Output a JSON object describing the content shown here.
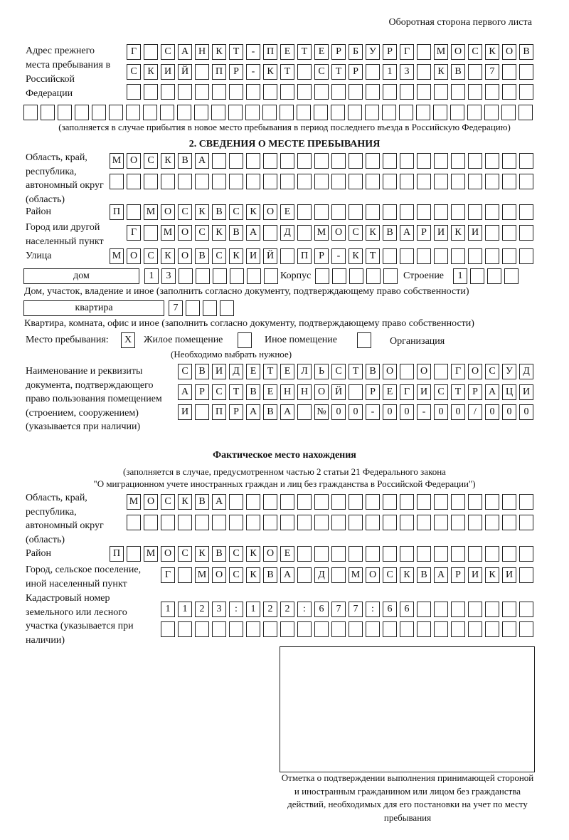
{
  "header": {
    "page_side": "Оборотная сторона первого листа"
  },
  "previous_address": {
    "label": "Адрес прежнего места пребывания в Российской Федерации",
    "rows": [
      "Г САНКТ-ПЕТЕРБУРГ МОСКОВ",
      "СКИЙ ПР-КТ СТР 13 КВ 7",
      "",
      ""
    ],
    "note": "(заполняется в случае прибытия в новое место пребывания в период последнего въезда в Российскую Федерацию)"
  },
  "section2": {
    "title": "2. СВЕДЕНИЯ О МЕСТЕ ПРЕБЫВАНИЯ",
    "region_label": "Область, край, республика, автономный округ (область)",
    "region_rows": [
      "МОСКВА",
      ""
    ],
    "district_label": "Район",
    "district": "П МОСКВСКОЕ",
    "city_label": "Город или другой населенный пункт",
    "city": "Г МОСКВА Д МОСКВАРИКИ",
    "street_label": "Улица",
    "street": "МОСКОВСКИЙ ПР-КТ",
    "house_type": "дом",
    "house_number": "13",
    "korpus_label": "Корпус",
    "korpus": "",
    "building_label": "Строение",
    "building": "1",
    "house_note": "Дом, участок, владение и иное (заполнить согласно документу, подтверждающему право собственности)",
    "apt_type": "квартира",
    "apt_number": "7",
    "apt_note": "Квартира, комната, офис и иное (заполнить согласно документу, подтверждающему право собственности)",
    "stay_label": "Место пребывания:",
    "stay_options": [
      {
        "label": "Жилое помещение",
        "mark": "X"
      },
      {
        "label": "Иное помещение",
        "mark": ""
      },
      {
        "label": "Организация",
        "mark": ""
      }
    ],
    "stay_note": "(Необходимо выбрать нужное)",
    "doc_label": "Наименование и реквизиты документа, подтверждающего право пользования помещением (строением, сооружением) (указывается при наличии)",
    "doc_rows": [
      "СВИДЕТЕЛЬСТВО О ГОСУД",
      "АРСТВЕННОЙ РЕГИСТРАЦИ",
      "И ПРАВА №00-00-00/000"
    ]
  },
  "actual": {
    "title": "Фактическое место нахождения",
    "note1": "(заполняется в случае, предусмотренном частью 2 статьи 21 Федерального закона",
    "note2": "\"О миграционном учете иностранных граждан и лиц без гражданства в Российской Федерации\")",
    "region_label": "Область, край, республика, автономный округ (область)",
    "region_rows": [
      "МОСКВА",
      ""
    ],
    "district_label": "Район",
    "district": "П МОСКВСКОЕ",
    "city_label": "Город, сельское поселение, иной населенный пункт",
    "city": "Г МОСКВА Д МОСКВАРИКИ",
    "cadastre_label": "Кадастровый номер земельного или лесного участка (указывается при наличии)",
    "cadastre_rows": [
      "1123:122:677:66",
      ""
    ]
  },
  "confirmation": {
    "caption": "Отметка о подтверждении выполнения принимающей стороной и иностранным гражданином или лицом без гражданства действий, необходимых для его постановки на учет по месту пребывания"
  }
}
